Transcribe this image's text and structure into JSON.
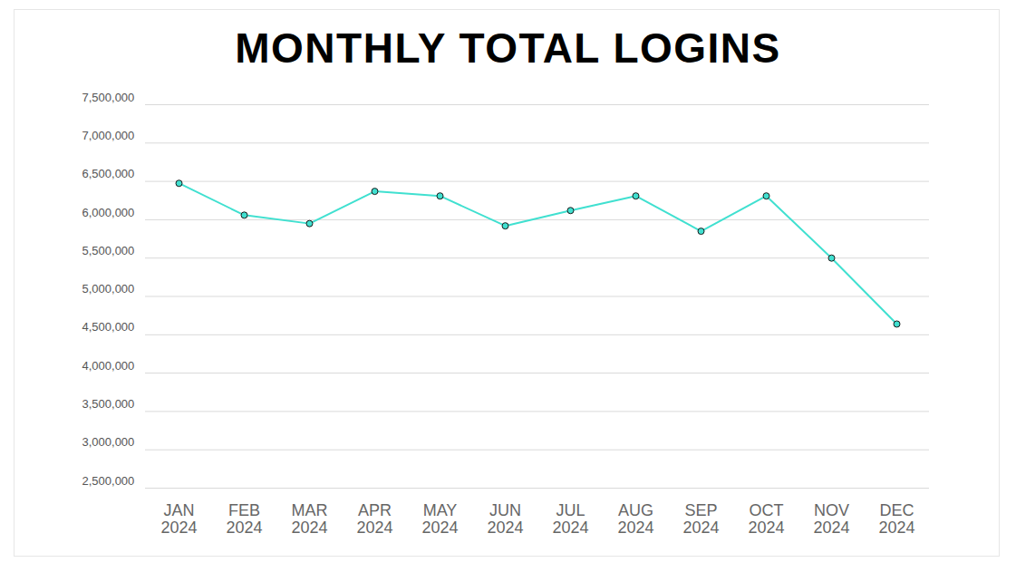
{
  "chart_data": {
    "type": "line",
    "title": "MONTHLY TOTAL LOGINS",
    "categories": [
      "JAN\n2024",
      "FEB\n2024",
      "MAR\n2024",
      "APR\n2024",
      "MAY\n2024",
      "JUN\n2024",
      "JUL\n2024",
      "AUG\n2024",
      "SEP\n2024",
      "OCT\n2024",
      "NOV\n2024",
      "DEC\n2024"
    ],
    "values": [
      6475000,
      6060000,
      5950000,
      6370000,
      6310000,
      5920000,
      6120000,
      6310000,
      5850000,
      6310000,
      5500000,
      4640000
    ],
    "color": "#40e0d0",
    "marker": "circle",
    "ylim": [
      2500000,
      7500000
    ],
    "yticks": [
      {
        "value": 2500000,
        "label": "2,500,000"
      },
      {
        "value": 3000000,
        "label": "3,000,000"
      },
      {
        "value": 3500000,
        "label": "3,500,000"
      },
      {
        "value": 4000000,
        "label": "4,000,000"
      },
      {
        "value": 4500000,
        "label": "4,500,000"
      },
      {
        "value": 5000000,
        "label": "5,000,000"
      },
      {
        "value": 5500000,
        "label": "5,500,000"
      },
      {
        "value": 6000000,
        "label": "6,000,000"
      },
      {
        "value": 6500000,
        "label": "6,500,000"
      },
      {
        "value": 7000000,
        "label": "7,000,000"
      },
      {
        "value": 7500000,
        "label": "7,500,000"
      }
    ],
    "grid": true
  }
}
